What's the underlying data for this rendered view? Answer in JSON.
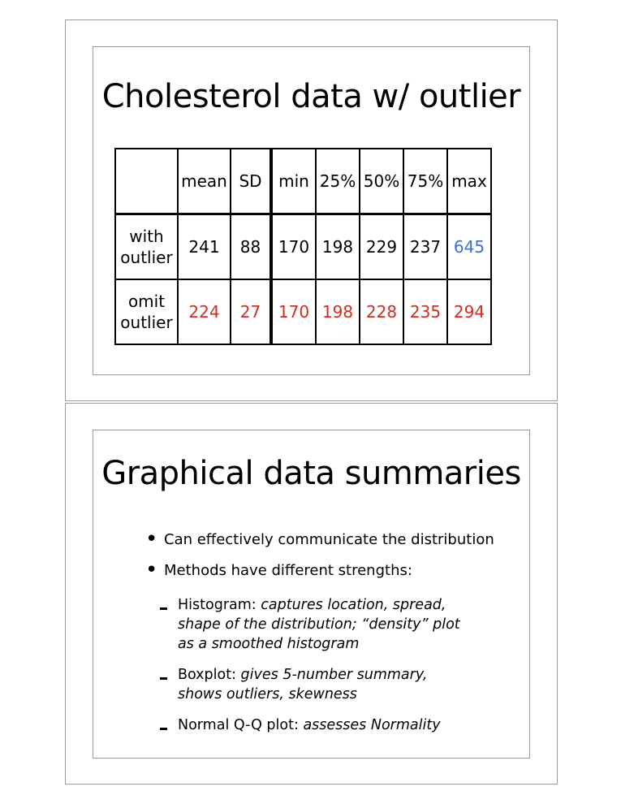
{
  "slide1": {
    "title": "Cholesterol data w/ outlier",
    "table": {
      "headers": [
        "",
        "mean",
        "SD",
        "min",
        "25%",
        "50%",
        "75%",
        "max"
      ],
      "rows": [
        {
          "label": "with outlier",
          "values": [
            "241",
            "88",
            "170",
            "198",
            "229",
            "237",
            "645"
          ]
        },
        {
          "label": "omit outlier",
          "values": [
            "224",
            "27",
            "170",
            "198",
            "228",
            "235",
            "294"
          ]
        }
      ]
    },
    "colors": {
      "highlight_red": "#d42b1e",
      "highlight_blue": "#3a6fd8"
    }
  },
  "slide2": {
    "title": "Graphical data summaries",
    "bullets": [
      "Can effectively communicate the distribution",
      "Methods have different strengths:"
    ],
    "sub_bullets": [
      {
        "label": "Histogram:",
        "desc": "captures location, spread, shape of the distribution; “density” plot as a smoothed histogram"
      },
      {
        "label": "Boxplot:",
        "desc": "gives 5-number summary, shows outliers, skewness"
      },
      {
        "label": "Normal Q-Q plot:",
        "desc": "assesses Normality"
      }
    ]
  }
}
